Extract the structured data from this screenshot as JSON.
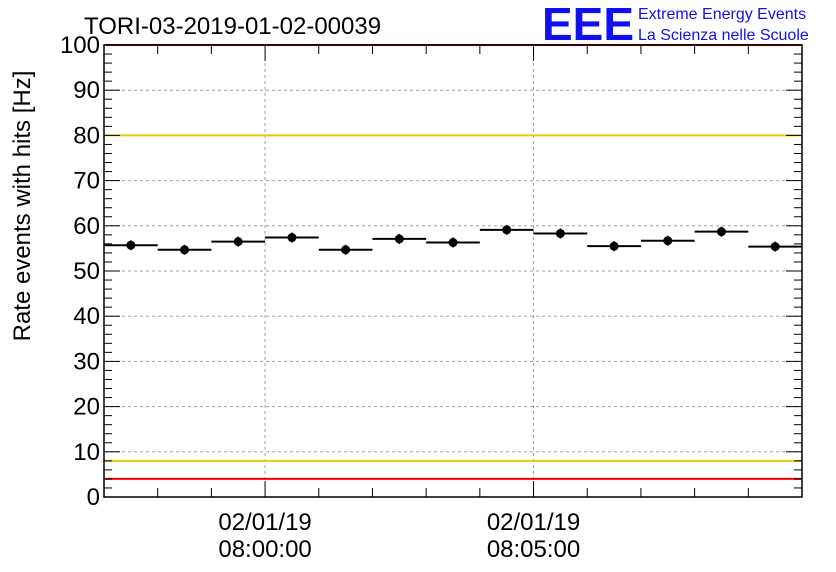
{
  "chart_data": {
    "type": "scatter",
    "title": "TORI-03-2019-01-02-00039",
    "ylabel": "Rate events with hits [Hz]",
    "xlabel": "",
    "ylim": [
      0,
      100
    ],
    "xlim": [
      0,
      13
    ],
    "yticks": [
      0,
      10,
      20,
      30,
      40,
      50,
      60,
      70,
      80,
      90,
      100
    ],
    "xticks": [
      {
        "x": 3,
        "label_date": "02/01/19",
        "label_time": "08:00:00"
      },
      {
        "x": 8,
        "label_date": "02/01/19",
        "label_time": "08:05:00"
      }
    ],
    "grid": true,
    "series": [
      {
        "name": "rate",
        "color": "#000000",
        "bin_width": 1,
        "x": [
          0.5,
          1.5,
          2.5,
          3.5,
          4.5,
          5.5,
          6.5,
          7.5,
          8.5,
          9.5,
          10.5,
          11.5,
          12.5
        ],
        "values": [
          55.7,
          54.7,
          56.5,
          57.4,
          54.7,
          57.1,
          56.3,
          59.1,
          58.3,
          55.5,
          56.7,
          58.7,
          55.4
        ]
      }
    ],
    "reference_lines": [
      {
        "y": 4,
        "color": "#ff0000"
      },
      {
        "y": 8,
        "color": "#f0c800"
      },
      {
        "y": 80,
        "color": "#f0c800"
      },
      {
        "y": 100,
        "color": "#ff0000"
      }
    ]
  },
  "logo": {
    "text": "EEE",
    "line1": "Extreme Energy Events",
    "line2": "La Scienza nelle Scuole",
    "color": "#1111ee"
  }
}
